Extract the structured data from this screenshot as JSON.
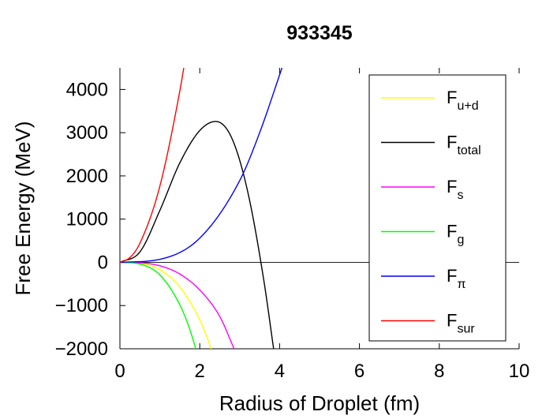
{
  "chart_data": {
    "type": "line",
    "title": "933345",
    "xlabel": "Radius of Droplet (fm)",
    "ylabel": "Free Energy (MeV)",
    "xlim": [
      0,
      10
    ],
    "ylim": [
      -2000,
      4500
    ],
    "xticks": [
      0,
      2,
      4,
      6,
      8,
      10
    ],
    "yticks": [
      -2000,
      -1000,
      0,
      1000,
      2000,
      3000,
      4000
    ],
    "xtick_labels": [
      "0",
      "2",
      "4",
      "6",
      "8",
      "10"
    ],
    "ytick_labels": [
      "−2000",
      "−1000",
      "0",
      "1000",
      "2000",
      "3000",
      "4000"
    ],
    "zero_line": true,
    "grid": false,
    "legend_position": "right",
    "series": [
      {
        "name": "F",
        "sub": "u+d",
        "color": "#ffff00",
        "x": [
          0,
          0.5,
          1,
          1.5,
          2,
          2.2,
          2.28
        ],
        "y": [
          0,
          -20,
          -170,
          -570,
          -1330,
          -1780,
          -2000
        ]
      },
      {
        "name": "F",
        "sub": "total",
        "color": "#000000",
        "x": [
          0,
          0.5,
          1,
          1.5,
          2,
          2.4,
          2.8,
          3.2,
          3.6,
          3.85
        ],
        "y": [
          0,
          240,
          1200,
          2300,
          3050,
          3260,
          2880,
          1640,
          -390,
          -2000
        ]
      },
      {
        "name": "F",
        "sub": "s",
        "color": "#ff00ff",
        "x": [
          0,
          0.5,
          1,
          1.5,
          2,
          2.5,
          2.86
        ],
        "y": [
          0,
          -10,
          -80,
          -270,
          -640,
          -1250,
          -2000
        ]
      },
      {
        "name": "F",
        "sub": "g",
        "color": "#00ff00",
        "x": [
          0,
          0.5,
          1,
          1.5,
          1.75,
          1.9
        ],
        "y": [
          0,
          -40,
          -290,
          -980,
          -1550,
          -2000
        ]
      },
      {
        "name": "F",
        "sub": "π",
        "color": "#0000ff",
        "x": [
          0,
          1,
          2,
          3,
          3.5,
          4.06
        ],
        "y": [
          0,
          70,
          560,
          1890,
          3000,
          4500
        ]
      },
      {
        "name": "F",
        "sub": "sur",
        "color": "#ff0000",
        "x": [
          0,
          0.25,
          0.5,
          1,
          1.5,
          1.6
        ],
        "y": [
          0,
          110,
          440,
          1760,
          3960,
          4500
        ]
      }
    ]
  }
}
